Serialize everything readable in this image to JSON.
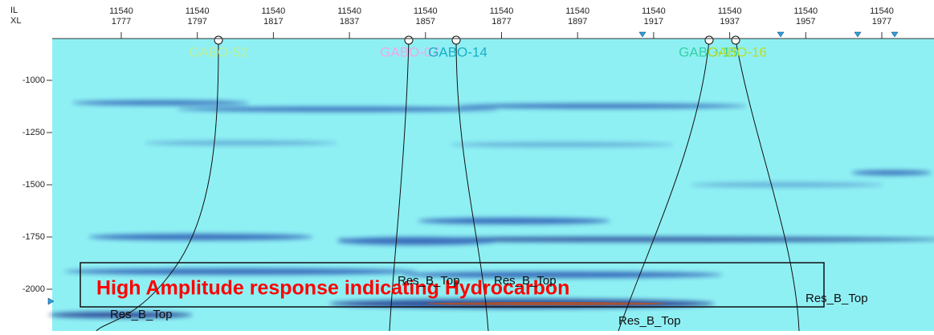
{
  "axis": {
    "top_row_names": [
      "IL",
      "XL"
    ],
    "top_ticks": [
      [
        "11540",
        "1777"
      ],
      [
        "11540",
        "1797"
      ],
      [
        "11540",
        "1817"
      ],
      [
        "11540",
        "1837"
      ],
      [
        "11540",
        "1857"
      ],
      [
        "11540",
        "1877"
      ],
      [
        "11540",
        "1897"
      ],
      [
        "11540",
        "1917"
      ],
      [
        "11540",
        "1937"
      ],
      [
        "11540",
        "1957"
      ],
      [
        "11540",
        "1977"
      ]
    ],
    "left_ticks": [
      "-1000",
      "-1250",
      "-1500",
      "-1750",
      "-2000"
    ]
  },
  "wells": [
    "GABO-52",
    "GABO-07",
    "GABO-14",
    "GABO-15",
    "GABO-16"
  ],
  "horizon_labels": [
    "Res_B_Top",
    "Res_B_Top",
    "Res_B_Top",
    "Res_B_Top",
    "Res_B_Top"
  ],
  "annotation": "High Amplitude response indicating Hydrocarbon"
}
